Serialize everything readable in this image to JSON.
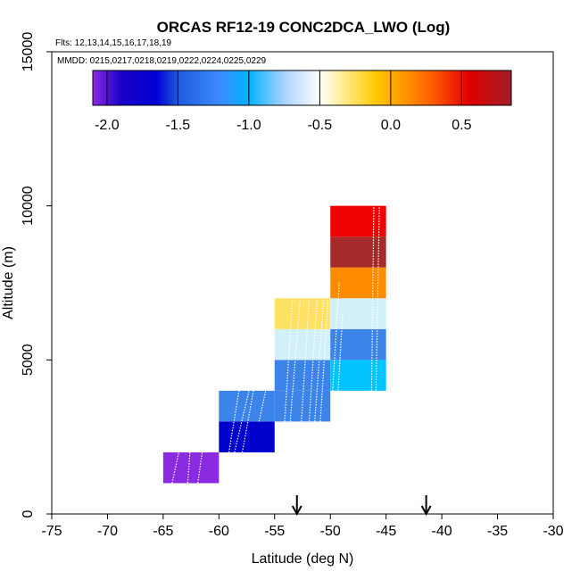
{
  "chart_data": {
    "type": "heatmap",
    "title": "ORCAS RF12-19 CONC2DCA_LWO (Log)",
    "flights_note": "Flts: 12,13,14,15,16,17,18,19",
    "dates_note": "MMDD: 0215,0217,0218,0219,0222,0224,0225,0229",
    "xlabel": "Latitude (deg N)",
    "ylabel": "Altitude (m)",
    "xlim": [
      -75,
      -30
    ],
    "ylim": [
      0,
      15000
    ],
    "x_ticks": [
      -75,
      -70,
      -65,
      -60,
      -55,
      -50,
      -45,
      -40,
      -35,
      -30
    ],
    "x_tick_labels": [
      "-75",
      "-70",
      "-65",
      "-60",
      "-55",
      "-50",
      "-45",
      "-40",
      "-35",
      "-30"
    ],
    "y_ticks": [
      0,
      5000,
      10000,
      15000
    ],
    "y_tick_labels": [
      "0",
      "5000",
      "10000",
      "15000"
    ],
    "colorbar": {
      "range": [
        -2.1,
        0.85
      ],
      "ticks": [
        -2.0,
        -1.5,
        -1.0,
        -0.5,
        0.0,
        0.5
      ],
      "tick_labels": [
        "-2.0",
        "-1.5",
        "-1.0",
        "-0.5",
        "0.0",
        "0.5"
      ],
      "stops": [
        {
          "v": -2.1,
          "color": "#8a2be2"
        },
        {
          "v": -1.9,
          "color": "#1a00c8"
        },
        {
          "v": -1.65,
          "color": "#0000d4"
        },
        {
          "v": -1.5,
          "color": "#1e5adc"
        },
        {
          "v": -1.2,
          "color": "#3c8cff"
        },
        {
          "v": -1.0,
          "color": "#00b4ff"
        },
        {
          "v": -0.75,
          "color": "#aad2ff"
        },
        {
          "v": -0.5,
          "color": "#ffffff"
        },
        {
          "v": -0.3,
          "color": "#ffe87a"
        },
        {
          "v": -0.1,
          "color": "#ffc800"
        },
        {
          "v": 0.1,
          "color": "#ff9600"
        },
        {
          "v": 0.3,
          "color": "#ff5a00"
        },
        {
          "v": 0.55,
          "color": "#e00000"
        },
        {
          "v": 0.85,
          "color": "#a01e28"
        }
      ]
    },
    "cells": [
      {
        "lat0": -65,
        "lat1": -60,
        "alt0": 1000,
        "alt1": 2000,
        "value": -2.05,
        "color": "#8a2be2"
      },
      {
        "lat0": -60,
        "lat1": -55,
        "alt0": 2000,
        "alt1": 3000,
        "value": -1.7,
        "color": "#0000cd"
      },
      {
        "lat0": -60,
        "lat1": -55,
        "alt0": 3000,
        "alt1": 4000,
        "value": -1.2,
        "color": "#3c84ea"
      },
      {
        "lat0": -55,
        "lat1": -50,
        "alt0": 3000,
        "alt1": 4000,
        "value": -1.2,
        "color": "#3c84ea"
      },
      {
        "lat0": -55,
        "lat1": -50,
        "alt0": 4000,
        "alt1": 5000,
        "value": -1.2,
        "color": "#3c84ea"
      },
      {
        "lat0": -55,
        "lat1": -50,
        "alt0": 5000,
        "alt1": 6000,
        "value": -0.75,
        "color": "#d2f0fa"
      },
      {
        "lat0": -55,
        "lat1": -50,
        "alt0": 6000,
        "alt1": 7000,
        "value": -0.3,
        "color": "#ffe164"
      },
      {
        "lat0": -50,
        "lat1": -45,
        "alt0": 4000,
        "alt1": 5000,
        "value": -1.0,
        "color": "#00c3ff"
      },
      {
        "lat0": -50,
        "lat1": -45,
        "alt0": 5000,
        "alt1": 6000,
        "value": -1.2,
        "color": "#3c84ea"
      },
      {
        "lat0": -50,
        "lat1": -45,
        "alt0": 6000,
        "alt1": 7000,
        "value": -0.75,
        "color": "#d2f0fa"
      },
      {
        "lat0": -50,
        "lat1": -45,
        "alt0": 7000,
        "alt1": 8000,
        "value": 0.1,
        "color": "#ff8c00"
      },
      {
        "lat0": -50,
        "lat1": -45,
        "alt0": 8000,
        "alt1": 9000,
        "value": 0.8,
        "color": "#a52a2a"
      },
      {
        "lat0": -50,
        "lat1": -45,
        "alt0": 9000,
        "alt1": 10000,
        "value": 0.55,
        "color": "#f00000"
      }
    ],
    "markers": [
      {
        "lat": -53.0,
        "label": "arrow"
      },
      {
        "lat": -41.4,
        "label": "arrow"
      }
    ]
  }
}
